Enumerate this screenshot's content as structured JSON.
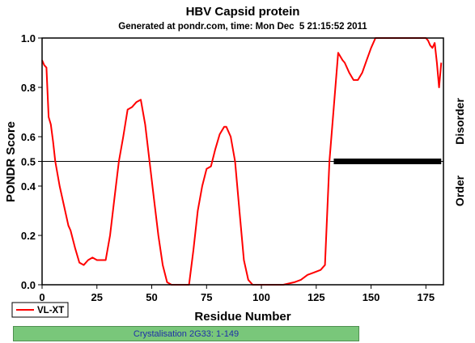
{
  "chart_data": {
    "type": "line",
    "title": "HBV Capsid protein",
    "subtitle": "Generated at pondr.com, time: Mon Dec  5 21:15:52 2011",
    "xlabel": "Residue Number",
    "ylabel": "PONDR Score",
    "xlim": [
      0,
      183
    ],
    "ylim": [
      0,
      1.0
    ],
    "x_ticks": [
      "0",
      "25",
      "50",
      "75",
      "100",
      "125",
      "150",
      "175"
    ],
    "y_ticks": [
      "0.0",
      "0.2",
      "0.4",
      "0.5",
      "0.6",
      "0.8",
      "1.0"
    ],
    "threshold": 0.5,
    "right_labels": {
      "upper": "Disorder",
      "lower": "Order"
    },
    "grid": false,
    "legend_position": "bottom-left",
    "series": [
      {
        "name": "VL-XT",
        "color": "#ff0000",
        "x": [
          0,
          1,
          2,
          3,
          4,
          5,
          6,
          8,
          10,
          12,
          13,
          15,
          17,
          19,
          21,
          23,
          25,
          27,
          29,
          31,
          33,
          35,
          37,
          39,
          41,
          43,
          45,
          47,
          49,
          51,
          53,
          55,
          57,
          59,
          61,
          63,
          65,
          67,
          69,
          71,
          73,
          75,
          77,
          79,
          81,
          83,
          84,
          86,
          88,
          90,
          92,
          94,
          96,
          98,
          100,
          102,
          105,
          110,
          115,
          118,
          121,
          124,
          127,
          129,
          131,
          133,
          135,
          137,
          138,
          140,
          142,
          144,
          146,
          148,
          150,
          152,
          155,
          160,
          165,
          170,
          175,
          176,
          177,
          178,
          179,
          180,
          181,
          182
        ],
        "values": [
          0.91,
          0.89,
          0.88,
          0.68,
          0.65,
          0.58,
          0.5,
          0.4,
          0.32,
          0.24,
          0.22,
          0.15,
          0.09,
          0.08,
          0.1,
          0.11,
          0.1,
          0.1,
          0.1,
          0.2,
          0.35,
          0.5,
          0.6,
          0.71,
          0.72,
          0.74,
          0.75,
          0.65,
          0.5,
          0.35,
          0.2,
          0.08,
          0.01,
          0.0,
          0.0,
          0.0,
          0.0,
          0.0,
          0.14,
          0.3,
          0.4,
          0.47,
          0.48,
          0.55,
          0.61,
          0.64,
          0.64,
          0.6,
          0.5,
          0.3,
          0.1,
          0.02,
          0.0,
          0.0,
          0.0,
          0.0,
          0.0,
          0.0,
          0.01,
          0.02,
          0.04,
          0.05,
          0.06,
          0.08,
          0.5,
          0.72,
          0.94,
          0.91,
          0.9,
          0.86,
          0.83,
          0.83,
          0.86,
          0.91,
          0.96,
          1.0,
          1.0,
          1.0,
          1.0,
          1.0,
          1.0,
          0.99,
          0.97,
          0.96,
          0.98,
          0.9,
          0.8,
          0.9
        ]
      }
    ],
    "disorder_segment": {
      "x_start": 133,
      "x_end": 182,
      "y": 0.5,
      "color": "#000000"
    }
  },
  "bottom_bar": {
    "label": "Crystalisation 2G33: 1-149",
    "color": "#79c77a"
  }
}
